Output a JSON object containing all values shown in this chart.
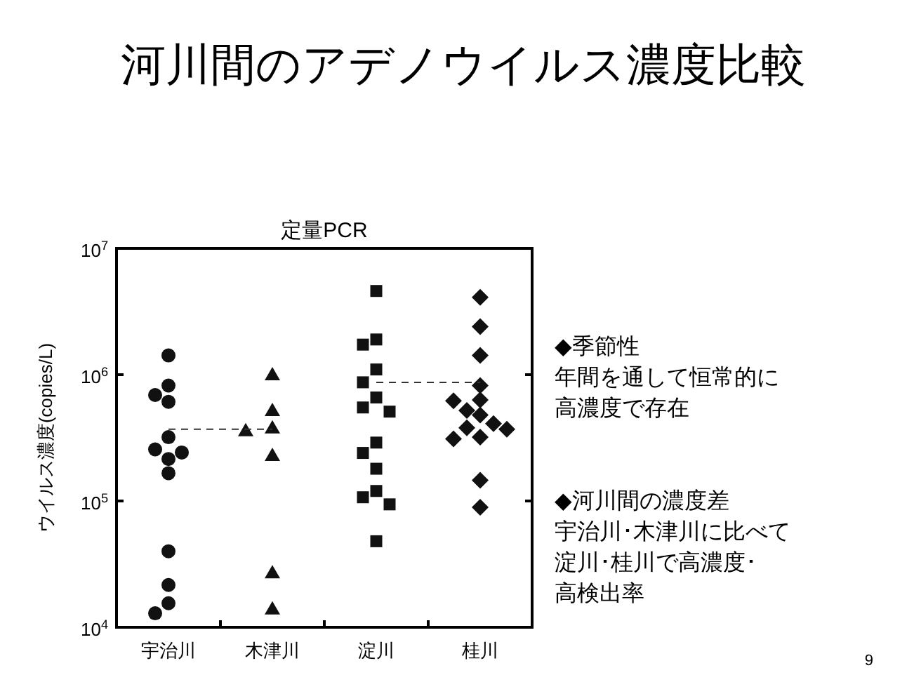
{
  "chart_data": {
    "type": "scatter",
    "title": "河川間のアデノウイルス濃度比較",
    "subtitle": "定量PCR",
    "ylabel": "ウイルス濃度(copies/L)",
    "categories": [
      "宇治川",
      "木津川",
      "淀川",
      "桂川"
    ],
    "log": "y",
    "ylim": [
      10000,
      10000000
    ],
    "yticks": [
      {
        "value": 10000,
        "label": "10$^{4}$"
      },
      {
        "value": 100000,
        "label": "10$^{5}$"
      },
      {
        "value": 1000000,
        "label": "10$^{6}$"
      },
      {
        "value": 10000000,
        "label": "10$^{7}$"
      }
    ],
    "grid": false,
    "legend": false,
    "series": [
      {
        "type": "scatter",
        "marker": "circle",
        "color": "#111111",
        "x": [
          "宇治川",
          "宇治川",
          "宇治川",
          "宇治川",
          "宇治川",
          "宇治川",
          "宇治川",
          "宇治川",
          "宇治川",
          "宇治川",
          "宇治川",
          "宇治川",
          "宇治川"
        ],
        "values": [
          1420000,
          820000,
          690000,
          610000,
          320000,
          256000,
          242000,
          215000,
          166000,
          40000,
          21600,
          15500,
          12900
        ]
      },
      {
        "type": "scatter",
        "marker": "triangle",
        "color": "#111111",
        "x": [
          "木津川",
          "木津川",
          "木津川",
          "木津川",
          "木津川",
          "木津川",
          "木津川"
        ],
        "values": [
          1000000,
          520000,
          380000,
          360000,
          230000,
          27000,
          14000
        ]
      },
      {
        "type": "scatter",
        "marker": "square",
        "color": "#111111",
        "x": [
          "淀川",
          "淀川",
          "淀川",
          "淀川",
          "淀川",
          "淀川",
          "淀川",
          "淀川",
          "淀川",
          "淀川",
          "淀川",
          "淀川",
          "淀川",
          "淀川",
          "淀川"
        ],
        "values": [
          4600000,
          1900000,
          1730000,
          1100000,
          870000,
          660000,
          550000,
          510000,
          290000,
          240000,
          180000,
          120000,
          107000,
          94000,
          48000
        ]
      },
      {
        "type": "scatter",
        "marker": "diamond",
        "color": "#111111",
        "x": [
          "桂川",
          "桂川",
          "桂川",
          "桂川",
          "桂川",
          "桂川",
          "桂川",
          "桂川",
          "桂川",
          "桂川",
          "桂川",
          "桂川",
          "桂川",
          "桂川",
          "桂川"
        ],
        "values": [
          4100000,
          2400000,
          1420000,
          820000,
          630000,
          620000,
          520000,
          480000,
          410000,
          380000,
          370000,
          320000,
          310000,
          146000,
          89000
        ]
      },
      {
        "type": "line",
        "line_style": "dashed",
        "marker": "none",
        "color": "#333333",
        "x": [
          "宇治川",
          "木津川"
        ],
        "values": [
          370000,
          370000
        ]
      },
      {
        "type": "line",
        "line_style": "dashed",
        "marker": "none",
        "color": "#333333",
        "x": [
          "淀川",
          "桂川"
        ],
        "values": [
          870000,
          870000
        ]
      }
    ],
    "annotations": [
      "◆季節性",
      "年間を通して恒常的に",
      "高濃度で存在",
      "◆河川間の濃度差",
      "宇治川･木津川に比べて",
      "淀川･桂川で高濃度･",
      "高検出率",
      "9"
    ]
  }
}
